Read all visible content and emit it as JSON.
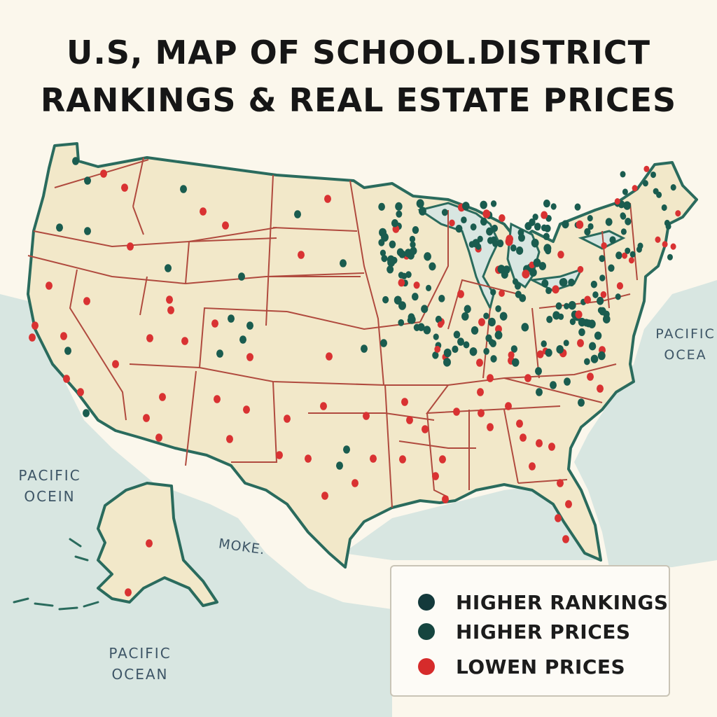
{
  "title": {
    "line1": "U.S, MAP OF SCHOOL.DISTRICT",
    "line2": "RANKINGS & REAL ESTATE PRICES"
  },
  "ocean_labels": {
    "west": "PACIFIC OCEIN",
    "east": "PACIFIC OCEA",
    "south": "PACIFIC OCEAN"
  },
  "gulf_label": "MOKE.",
  "legend": {
    "items": [
      {
        "label": "HIGHER RANKINGS",
        "color": "#13393b"
      },
      {
        "label": "HIGHER PRICES",
        "color": "#15453f"
      },
      {
        "label": "LOWEN PRICES",
        "color": "#d62b2b"
      }
    ]
  },
  "colors": {
    "land": "#f2e8c9",
    "water": "#d8e6e1",
    "coast": "#2a6b5d",
    "state_border": "#b04a3e",
    "dot_green": "#1a5c4f",
    "dot_red": "#d93232"
  }
}
